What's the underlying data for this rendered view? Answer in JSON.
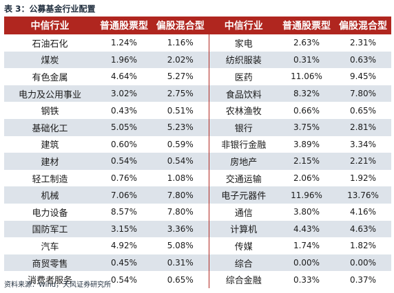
{
  "caption": "表 3：公募基金行业配置",
  "headers": [
    "中信行业",
    "普通股票型",
    "偏股混合型",
    "中信行业",
    "普通股票型",
    "偏股混合型"
  ],
  "rows": [
    {
      "left": [
        "石油石化",
        "1.24%",
        "1.16%"
      ],
      "right": [
        "家电",
        "2.63%",
        "2.31%"
      ]
    },
    {
      "left": [
        "煤炭",
        "1.96%",
        "2.02%"
      ],
      "right": [
        "纺织服装",
        "0.31%",
        "0.63%"
      ]
    },
    {
      "left": [
        "有色金属",
        "4.64%",
        "5.27%"
      ],
      "right": [
        "医药",
        "11.06%",
        "9.45%"
      ]
    },
    {
      "left": [
        "电力及公用事业",
        "3.02%",
        "2.75%"
      ],
      "right": [
        "食品饮料",
        "8.32%",
        "7.80%"
      ]
    },
    {
      "left": [
        "钢铁",
        "0.43%",
        "0.51%"
      ],
      "right": [
        "农林渔牧",
        "0.66%",
        "0.65%"
      ]
    },
    {
      "left": [
        "基础化工",
        "5.05%",
        "5.23%"
      ],
      "right": [
        "银行",
        "3.75%",
        "2.81%"
      ]
    },
    {
      "left": [
        "建筑",
        "0.60%",
        "0.59%"
      ],
      "right": [
        "非银行金融",
        "3.89%",
        "3.34%"
      ]
    },
    {
      "left": [
        "建材",
        "0.54%",
        "0.54%"
      ],
      "right": [
        "房地产",
        "2.15%",
        "2.21%"
      ]
    },
    {
      "left": [
        "轻工制造",
        "0.76%",
        "1.08%"
      ],
      "right": [
        "交通运输",
        "2.06%",
        "1.92%"
      ]
    },
    {
      "left": [
        "机械",
        "7.06%",
        "7.80%"
      ],
      "right": [
        "电子元器件",
        "11.96%",
        "13.76%"
      ]
    },
    {
      "left": [
        "电力设备",
        "8.57%",
        "7.80%"
      ],
      "right": [
        "通信",
        "3.80%",
        "4.16%"
      ]
    },
    {
      "left": [
        "国防军工",
        "3.15%",
        "3.36%"
      ],
      "right": [
        "计算机",
        "4.43%",
        "4.63%"
      ]
    },
    {
      "left": [
        "汽车",
        "4.92%",
        "5.08%"
      ],
      "right": [
        "传媒",
        "1.74%",
        "1.82%"
      ]
    },
    {
      "left": [
        "商贸零售",
        "0.45%",
        "0.31%"
      ],
      "right": [
        "综合",
        "0.00%",
        "0.00%"
      ]
    },
    {
      "left": [
        "消费者服务",
        "0.54%",
        "0.65%"
      ],
      "right": [
        "综合金融",
        "0.33%",
        "0.37%"
      ]
    }
  ],
  "source": "资料来源：Wind，天风证券研究所"
}
